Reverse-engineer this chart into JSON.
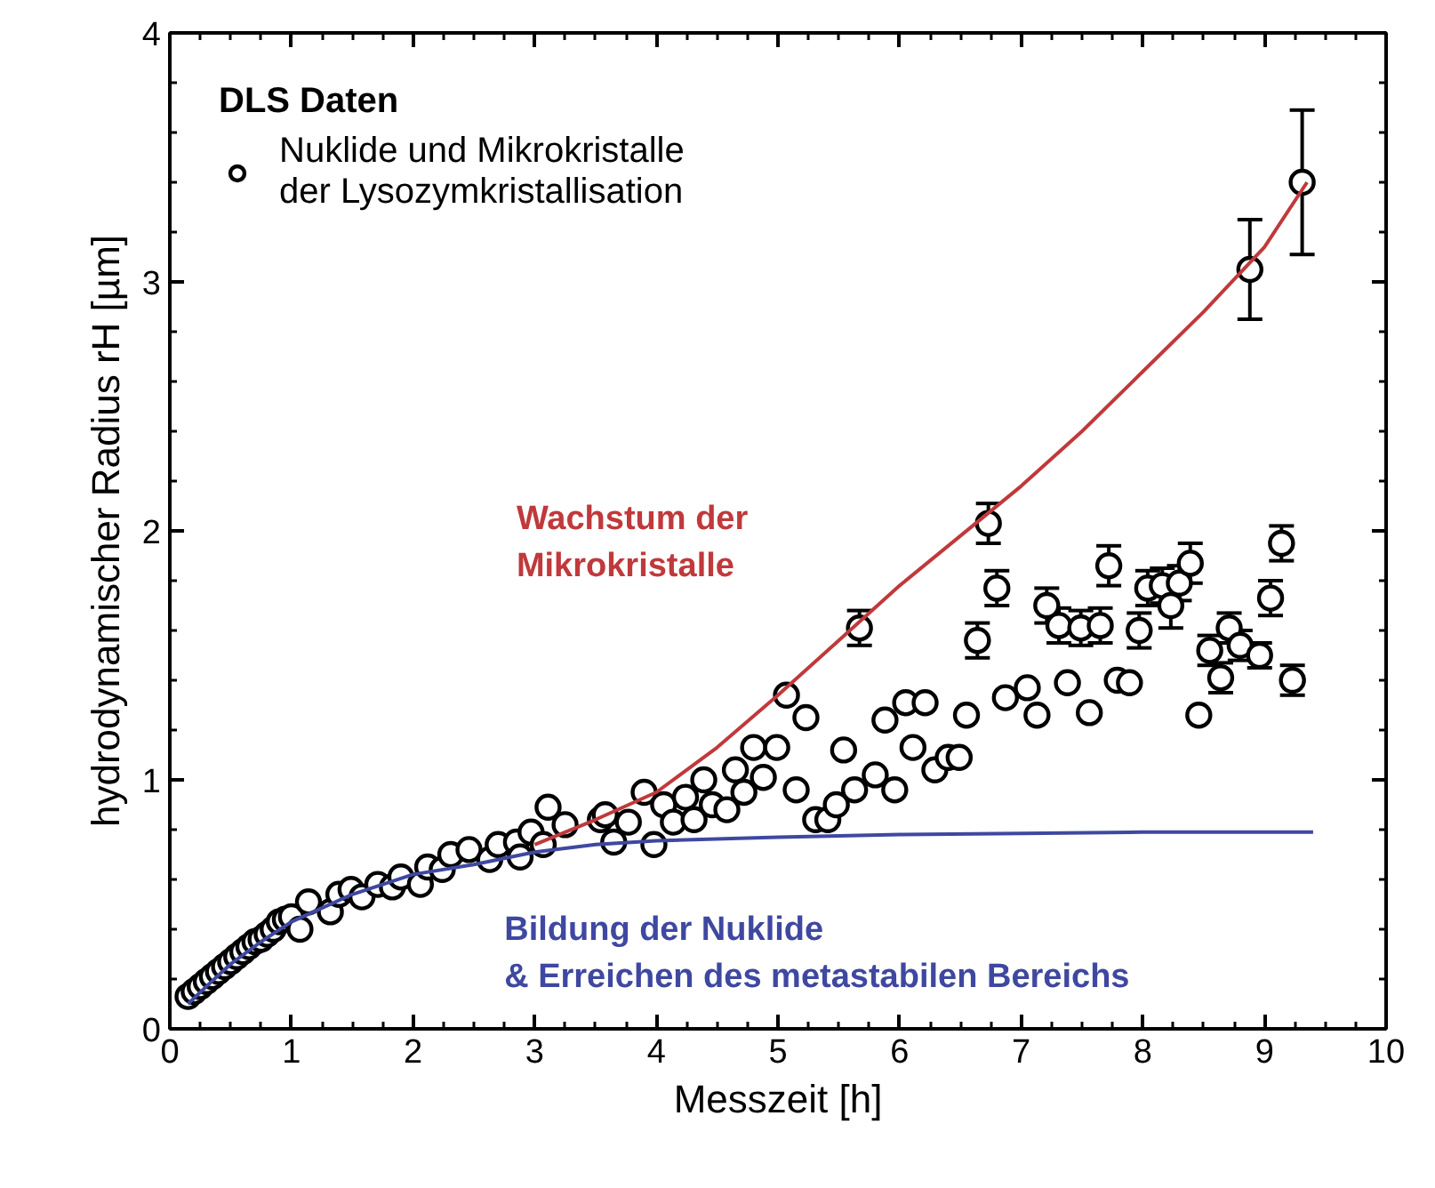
{
  "chart_data": {
    "type": "scatter",
    "xlabel": "Messzeit [h]",
    "ylabel": "hydrodynamischer Radius rH [µm]",
    "legend_title": "DLS Daten",
    "xlim": [
      0,
      10
    ],
    "ylim": [
      0,
      4
    ],
    "xticks": [
      0,
      1,
      2,
      3,
      4,
      5,
      6,
      7,
      8,
      9,
      10
    ],
    "yticks": [
      0,
      1,
      2,
      3,
      4
    ],
    "legend": "top left",
    "grid": false,
    "series": [
      {
        "name": "Nuklide und Mikrokristalle\nder Lysozymkristallisation",
        "marker": "circle",
        "color": "#000000",
        "x": [
          0.15,
          0.2,
          0.25,
          0.3,
          0.35,
          0.4,
          0.45,
          0.5,
          0.55,
          0.6,
          0.65,
          0.7,
          0.75,
          0.8,
          0.85,
          0.9,
          0.95,
          1.0,
          1.07,
          1.14,
          1.32,
          1.39,
          1.49,
          1.58,
          1.71,
          1.83,
          1.9,
          2.06,
          2.12,
          2.24,
          2.31,
          2.46,
          2.63,
          2.7,
          2.85,
          2.88,
          2.97,
          3.07,
          3.11,
          3.25,
          3.54,
          3.58,
          3.65,
          3.77,
          3.9,
          3.98,
          4.06,
          4.14,
          4.24,
          4.31,
          4.39,
          4.46,
          4.58,
          4.65,
          4.72,
          4.8,
          4.88,
          4.99,
          5.07,
          5.15,
          5.23,
          5.31,
          5.41,
          5.48,
          5.54,
          5.63,
          5.67,
          5.8,
          5.88,
          5.96,
          6.05,
          6.11,
          6.21,
          6.29,
          6.4,
          6.49,
          6.55,
          6.64,
          6.73,
          6.8,
          6.87,
          7.05,
          7.13,
          7.21,
          7.31,
          7.38,
          7.49,
          7.56,
          7.65,
          7.72,
          7.79,
          7.89,
          7.97,
          8.04,
          8.16,
          8.23,
          8.3,
          8.39,
          8.46,
          8.55,
          8.64,
          8.71,
          8.8,
          8.88,
          8.96,
          9.05,
          9.14,
          9.23,
          9.31
        ],
        "values": [
          0.13,
          0.15,
          0.17,
          0.19,
          0.21,
          0.23,
          0.25,
          0.27,
          0.29,
          0.31,
          0.33,
          0.35,
          0.36,
          0.38,
          0.4,
          0.43,
          0.44,
          0.45,
          0.4,
          0.51,
          0.47,
          0.54,
          0.56,
          0.53,
          0.58,
          0.57,
          0.61,
          0.58,
          0.65,
          0.64,
          0.7,
          0.72,
          0.68,
          0.74,
          0.75,
          0.69,
          0.79,
          0.74,
          0.89,
          0.82,
          0.84,
          0.86,
          0.75,
          0.83,
          0.95,
          0.74,
          0.9,
          0.83,
          0.93,
          0.84,
          1.0,
          0.9,
          0.88,
          1.04,
          0.95,
          1.13,
          1.01,
          1.13,
          1.34,
          0.96,
          1.25,
          0.84,
          0.84,
          0.9,
          1.12,
          0.96,
          1.61,
          1.02,
          1.24,
          0.96,
          1.31,
          1.13,
          1.31,
          1.04,
          1.09,
          1.09,
          1.26,
          1.56,
          2.03,
          1.77,
          1.33,
          1.37,
          1.26,
          1.7,
          1.62,
          1.39,
          1.61,
          1.27,
          1.62,
          1.86,
          1.4,
          1.39,
          1.6,
          1.77,
          1.78,
          1.7,
          1.79,
          1.87,
          1.26,
          1.52,
          1.41,
          1.61,
          1.54,
          3.05,
          1.5,
          1.73,
          1.95,
          1.4,
          3.4
        ],
        "errors": [
          null,
          null,
          null,
          null,
          null,
          null,
          null,
          null,
          null,
          null,
          null,
          null,
          null,
          null,
          null,
          null,
          null,
          null,
          null,
          null,
          null,
          null,
          null,
          null,
          null,
          null,
          null,
          null,
          null,
          null,
          null,
          null,
          null,
          null,
          null,
          null,
          null,
          null,
          null,
          null,
          null,
          null,
          null,
          null,
          null,
          null,
          null,
          null,
          null,
          null,
          null,
          null,
          null,
          null,
          null,
          null,
          null,
          null,
          null,
          null,
          null,
          null,
          null,
          null,
          null,
          null,
          0.07,
          null,
          null,
          null,
          null,
          null,
          null,
          null,
          null,
          null,
          null,
          0.07,
          0.08,
          0.07,
          null,
          null,
          null,
          0.07,
          0.07,
          null,
          0.07,
          null,
          0.07,
          0.08,
          null,
          null,
          0.07,
          0.07,
          0.07,
          0.09,
          0.07,
          0.08,
          null,
          0.06,
          0.06,
          0.06,
          0.06,
          0.2,
          0.05,
          0.07,
          0.07,
          0.06,
          0.29
        ]
      },
      {
        "name": "Wachstum der\nMikrokristalle",
        "type": "line",
        "color": "#c0393b",
        "x": [
          3,
          3.5,
          4,
          4.5,
          5,
          5.5,
          6,
          6.5,
          7,
          7.5,
          8,
          8.5,
          9,
          9.35
        ],
        "values": [
          0.74,
          0.84,
          0.95,
          1.13,
          1.34,
          1.56,
          1.78,
          1.98,
          2.18,
          2.4,
          2.64,
          2.88,
          3.14,
          3.4
        ]
      },
      {
        "name": "Bildung der Nuklide\n& Erreichen des metastabilen Bereichs",
        "type": "line",
        "color": "#3f48a0",
        "x": [
          0.15,
          0.3,
          0.5,
          0.75,
          1,
          1.5,
          2,
          2.5,
          3,
          3.5,
          4,
          5,
          6,
          7,
          8,
          9,
          9.4
        ],
        "values": [
          0.1,
          0.17,
          0.26,
          0.35,
          0.43,
          0.54,
          0.62,
          0.66,
          0.71,
          0.74,
          0.755,
          0.77,
          0.78,
          0.785,
          0.79,
          0.79,
          0.79
        ]
      }
    ]
  }
}
